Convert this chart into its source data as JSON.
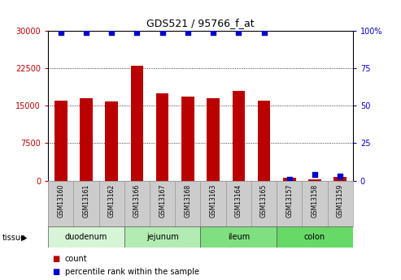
{
  "title": "GDS521 / 95766_f_at",
  "samples": [
    "GSM13160",
    "GSM13161",
    "GSM13162",
    "GSM13166",
    "GSM13167",
    "GSM13168",
    "GSM13163",
    "GSM13164",
    "GSM13165",
    "GSM13157",
    "GSM13158",
    "GSM13159"
  ],
  "counts": [
    16000,
    16500,
    15800,
    23000,
    17500,
    16800,
    16500,
    18000,
    16000,
    600,
    300,
    700
  ],
  "percentiles": [
    99,
    99,
    99,
    99,
    99,
    99,
    99,
    99,
    99,
    1,
    4,
    3
  ],
  "tissues": [
    {
      "label": "duodenum",
      "start": 0,
      "end": 3,
      "color": "#d6f5d6"
    },
    {
      "label": "jejunum",
      "start": 3,
      "end": 6,
      "color": "#b3ecb3"
    },
    {
      "label": "ileum",
      "start": 6,
      "end": 9,
      "color": "#80e080"
    },
    {
      "label": "colon",
      "start": 9,
      "end": 12,
      "color": "#66d966"
    }
  ],
  "ylim_left": [
    0,
    30000
  ],
  "ylim_right": [
    0,
    100
  ],
  "yticks_left": [
    0,
    7500,
    15000,
    22500,
    30000
  ],
  "ytick_labels_left": [
    "0",
    "7500",
    "15000",
    "22500",
    "30000"
  ],
  "yticks_right": [
    0,
    25,
    50,
    75,
    100
  ],
  "ytick_labels_right": [
    "0",
    "25",
    "50",
    "75",
    "100%"
  ],
  "bar_color_red": "#bb0000",
  "dot_color_blue": "#0000cc",
  "sample_box_color": "#cccccc",
  "legend_count_color": "#bb0000",
  "legend_pct_color": "#0000cc"
}
